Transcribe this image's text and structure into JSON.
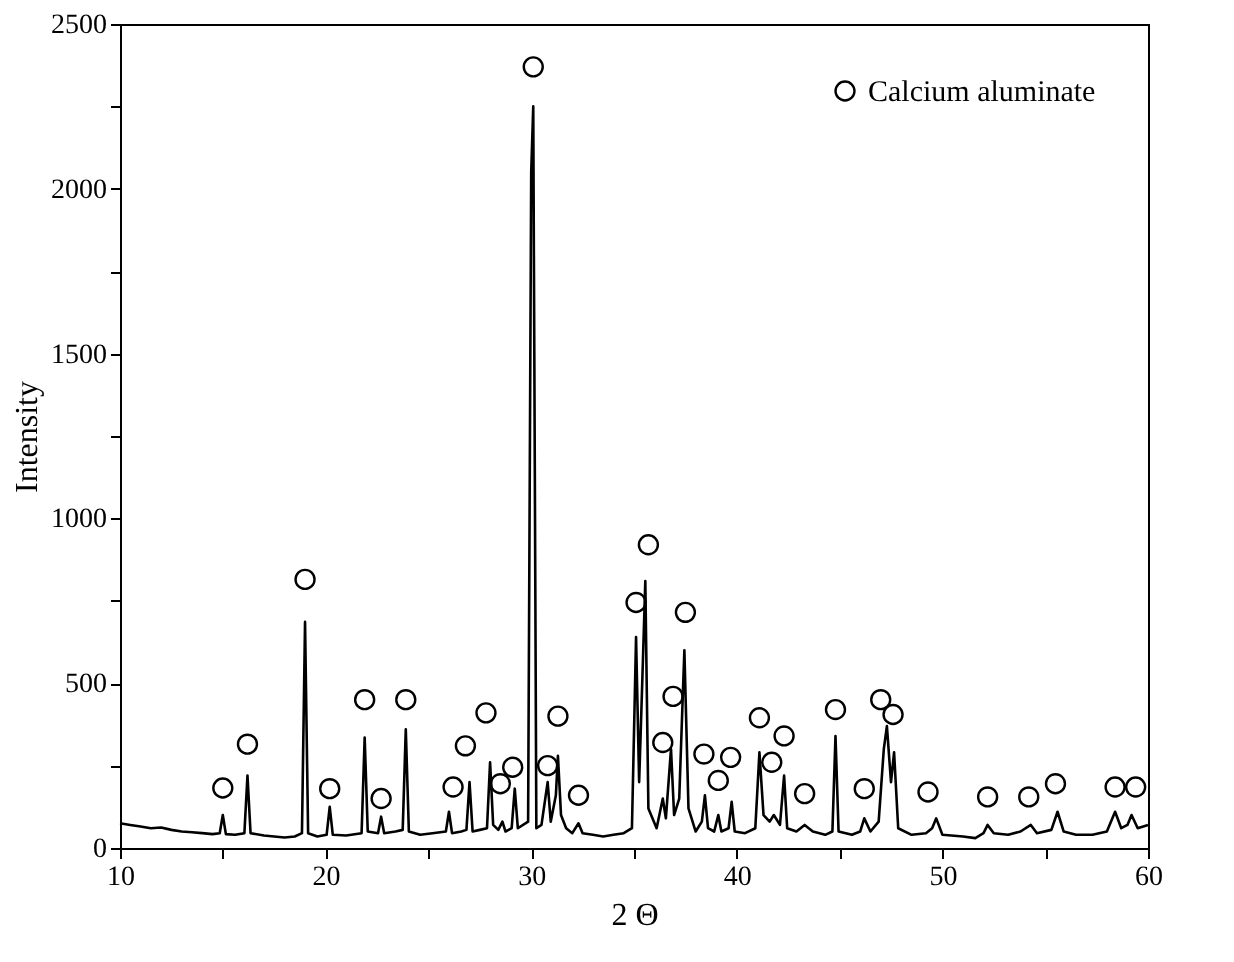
{
  "chart_data": {
    "type": "line",
    "xlabel": "2 Θ",
    "ylabel": "Intensity",
    "xlim": [
      10,
      60
    ],
    "ylim": [
      0,
      2500
    ],
    "xticks": [
      10,
      {
        "value": 15,
        "label": null
      },
      20,
      {
        "value": 25,
        "label": null
      },
      30,
      {
        "value": 35,
        "label": null
      },
      40,
      {
        "value": 45,
        "label": null
      },
      50,
      {
        "value": 55,
        "label": null
      },
      60
    ],
    "yticks": [
      0,
      {
        "value": 250,
        "label": null
      },
      500,
      {
        "value": 750,
        "label": null
      },
      1000,
      {
        "value": 1250,
        "label": null
      },
      1500,
      {
        "value": 1750,
        "label": null
      },
      2000,
      {
        "value": 2250,
        "label": null
      },
      2500
    ],
    "grid": false,
    "legend": "top right",
    "series": [
      {
        "color": "#000000",
        "marker": "none",
        "x": [
          10,
          10.5,
          11,
          11.5,
          12,
          12.5,
          13,
          13.5,
          14,
          14.5,
          14.85,
          15.0,
          15.15,
          15.6,
          16.05,
          16.2,
          16.35,
          17,
          17.5,
          18,
          18.5,
          18.85,
          19.0,
          19.15,
          19.6,
          20.05,
          20.2,
          20.35,
          21,
          21.75,
          21.9,
          22.05,
          22.55,
          22.7,
          22.85,
          23.4,
          23.75,
          23.9,
          24.05,
          24.6,
          25.2,
          25.85,
          26.0,
          26.15,
          26.6,
          26.85,
          27.0,
          27.15,
          27.5,
          27.85,
          28.0,
          28.15,
          28.4,
          28.6,
          28.75,
          29.05,
          29.2,
          29.35,
          29.85,
          30.0,
          30.1,
          30.25,
          30.5,
          30.8,
          30.95,
          31.2,
          31.3,
          31.45,
          31.7,
          32.0,
          32.3,
          32.5,
          33,
          33.5,
          34,
          34.5,
          34.9,
          35.1,
          35.25,
          35.4,
          35.55,
          35.7,
          36.1,
          36.4,
          36.55,
          36.8,
          36.95,
          37.2,
          37.45,
          37.65,
          38.0,
          38.3,
          38.45,
          38.6,
          38.9,
          39.1,
          39.25,
          39.6,
          39.75,
          39.9,
          40.4,
          40.9,
          41.1,
          41.3,
          41.6,
          41.8,
          42.1,
          42.3,
          42.45,
          42.9,
          43.3,
          43.7,
          44.3,
          44.65,
          44.8,
          44.95,
          45.6,
          46.0,
          46.2,
          46.5,
          46.9,
          47.15,
          47.3,
          47.5,
          47.65,
          47.85,
          48.5,
          49.2,
          49.5,
          49.7,
          50.0,
          51,
          51.6,
          52.0,
          52.2,
          52.5,
          53.2,
          53.8,
          54.3,
          54.6,
          55.3,
          55.6,
          55.9,
          56.5,
          57.3,
          58.0,
          58.4,
          58.7,
          59.0,
          59.2,
          59.5,
          60
        ],
        "values": [
          75,
          70,
          65,
          60,
          62,
          55,
          50,
          48,
          45,
          42,
          45,
          100,
          42,
          40,
          45,
          220,
          45,
          38,
          35,
          32,
          35,
          45,
          686,
          45,
          35,
          40,
          125,
          40,
          38,
          45,
          335,
          50,
          45,
          95,
          45,
          50,
          55,
          360,
          50,
          40,
          45,
          50,
          110,
          45,
          50,
          55,
          200,
          50,
          55,
          60,
          260,
          70,
          55,
          80,
          50,
          60,
          180,
          60,
          80,
          2050,
          2250,
          60,
          70,
          200,
          80,
          160,
          280,
          100,
          60,
          45,
          75,
          45,
          40,
          35,
          40,
          45,
          60,
          640,
          200,
          500,
          810,
          120,
          60,
          150,
          90,
          300,
          100,
          150,
          600,
          120,
          50,
          80,
          160,
          60,
          50,
          100,
          50,
          60,
          140,
          50,
          45,
          60,
          290,
          100,
          80,
          100,
          70,
          220,
          60,
          50,
          70,
          50,
          40,
          50,
          340,
          50,
          40,
          50,
          90,
          50,
          80,
          300,
          370,
          200,
          290,
          60,
          40,
          45,
          60,
          90,
          40,
          35,
          30,
          45,
          70,
          45,
          40,
          50,
          70,
          45,
          55,
          110,
          50,
          40,
          40,
          50,
          110,
          60,
          70,
          100,
          60,
          70
        ]
      },
      {
        "type": "scatter",
        "name": "Calcium aluminate",
        "color": "#000000",
        "marker": "circle",
        "x": [
          15.0,
          16.2,
          19.0,
          20.2,
          21.9,
          22.7,
          23.9,
          26.2,
          26.8,
          27.8,
          28.5,
          29.1,
          30.1,
          30.8,
          31.3,
          32.3,
          35.1,
          35.7,
          36.4,
          36.9,
          37.5,
          38.4,
          39.1,
          39.7,
          41.1,
          41.7,
          42.3,
          43.3,
          44.8,
          46.2,
          47.0,
          47.6,
          49.3,
          52.2,
          54.2,
          55.5,
          58.4,
          59.4
        ],
        "values": [
          182,
          315,
          815,
          180,
          450,
          150,
          450,
          185,
          310,
          410,
          195,
          245,
          2370,
          250,
          400,
          160,
          745,
          920,
          320,
          460,
          715,
          285,
          205,
          275,
          395,
          260,
          340,
          165,
          420,
          180,
          450,
          405,
          170,
          155,
          155,
          195,
          185,
          185
        ]
      }
    ]
  }
}
